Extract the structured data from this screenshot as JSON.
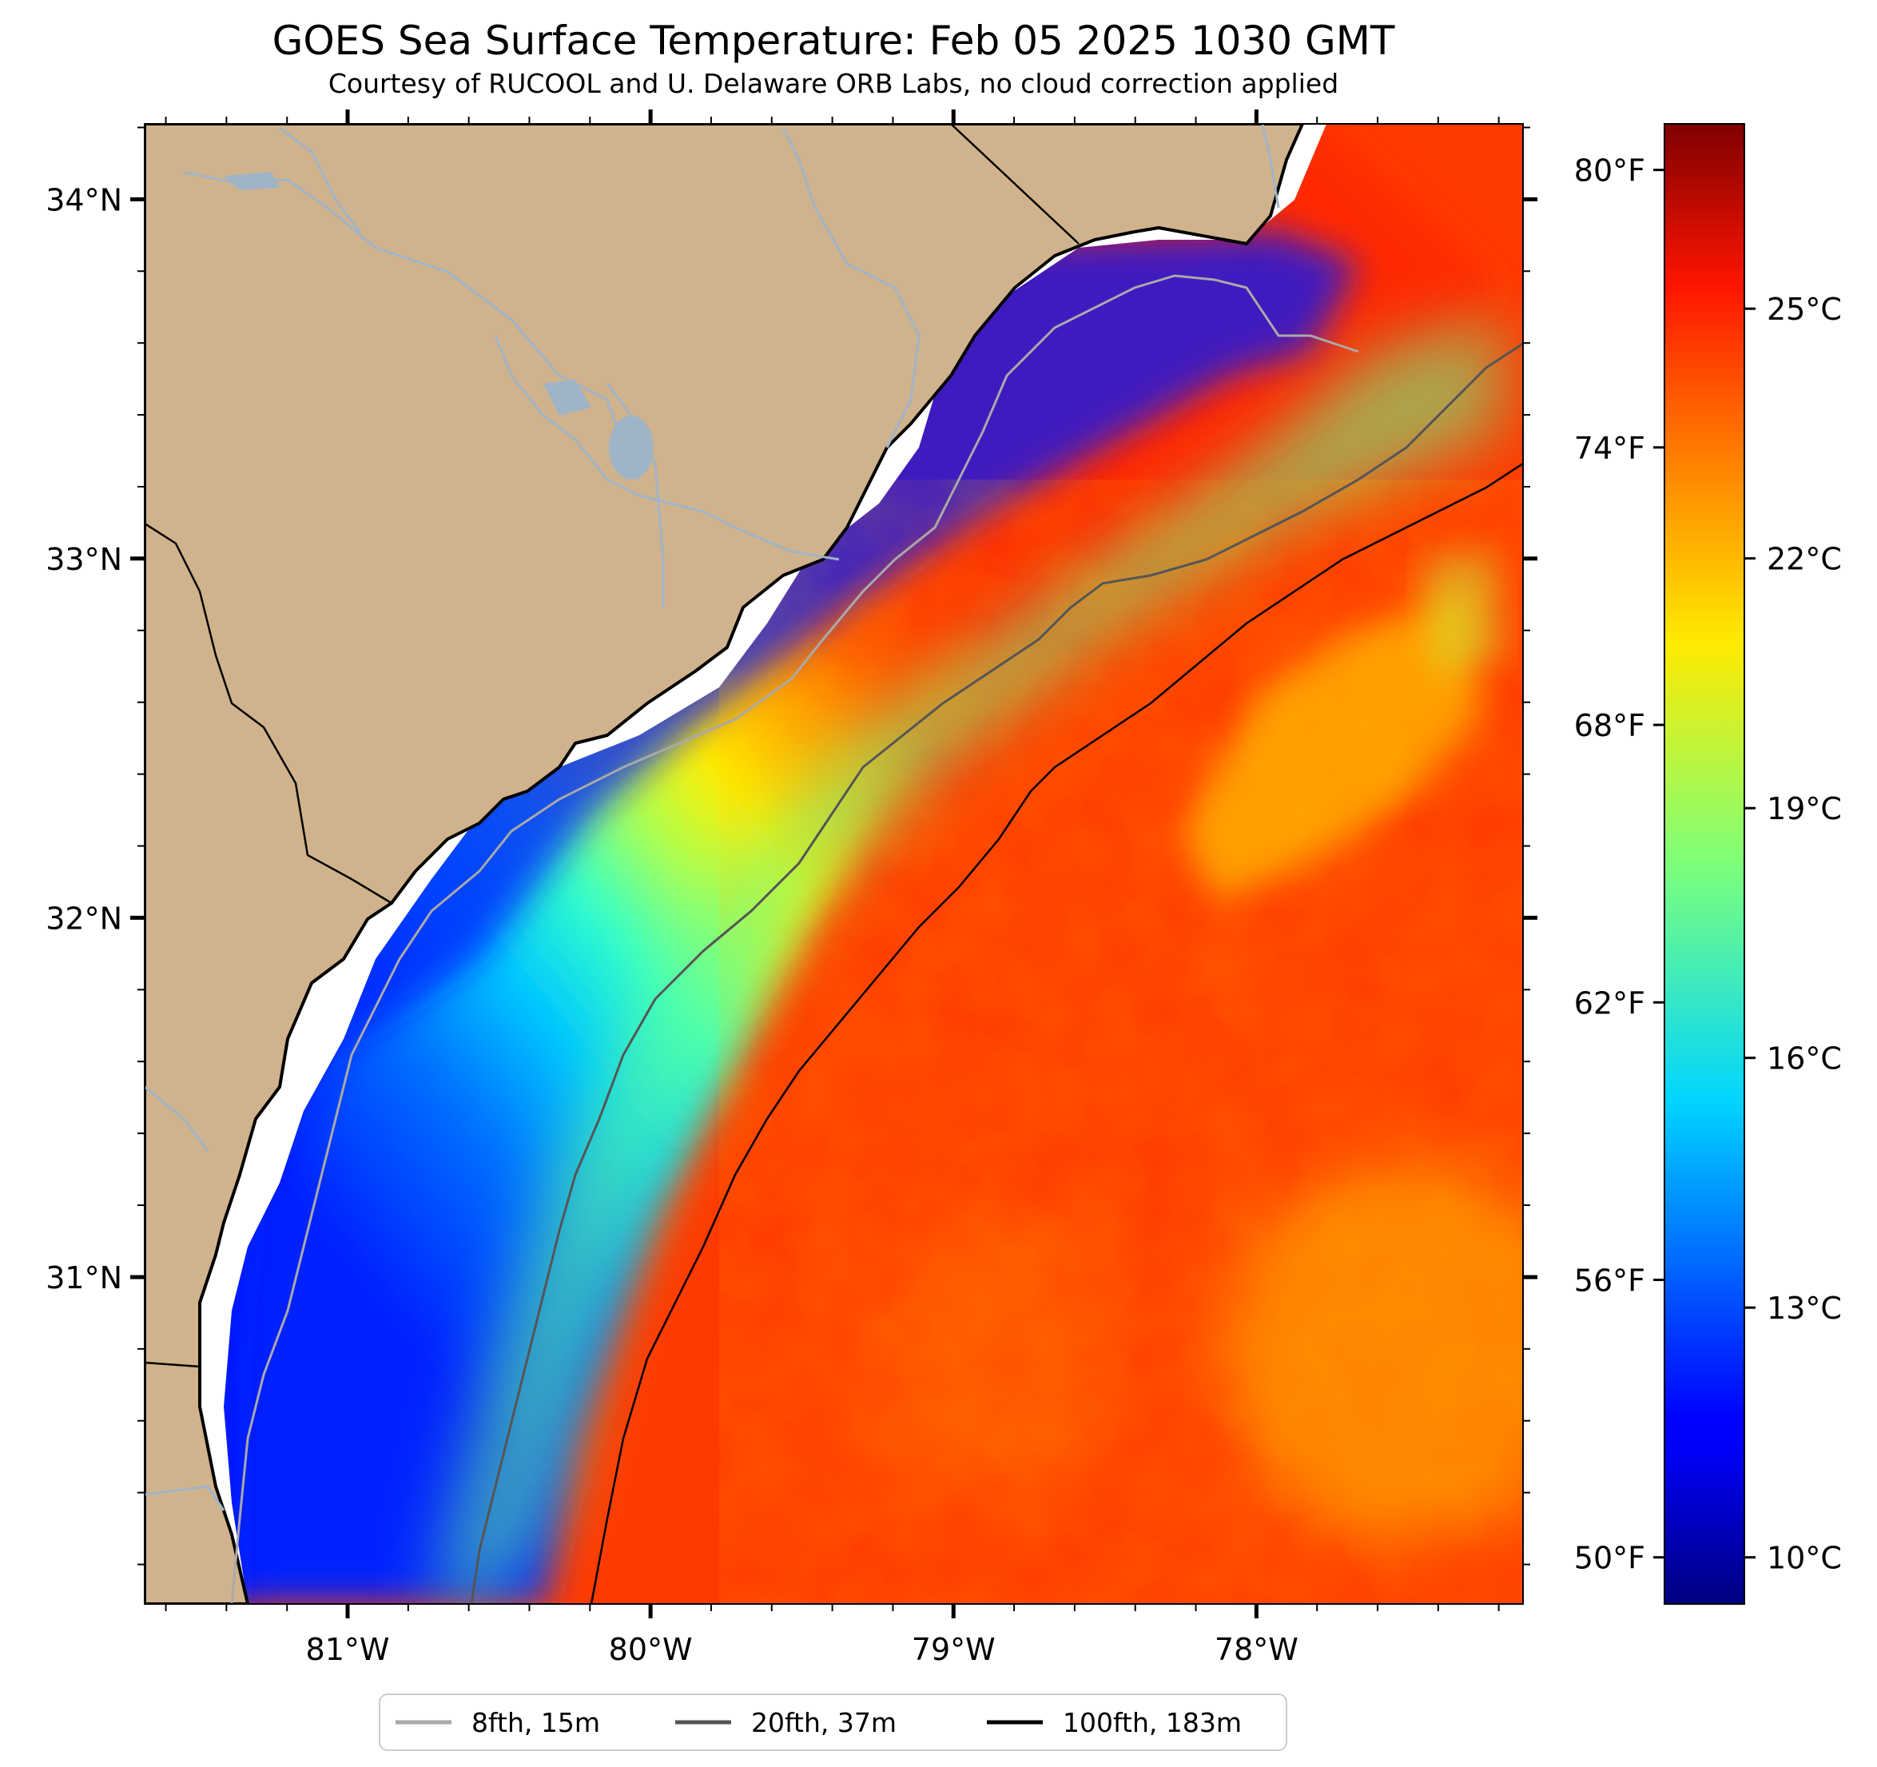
{
  "title": "GOES Sea Surface Temperature: Feb 05 2025 1030 GMT",
  "subtitle": "Courtesy of RUCOOL and U. Delaware ORB Labs, no cloud correction applied",
  "map": {
    "lon_range": [
      -81.67,
      -77.12
    ],
    "lat_range": [
      30.09,
      34.21
    ],
    "lat_ticks": [
      {
        "value": 34,
        "label": "34°N"
      },
      {
        "value": 33,
        "label": "33°N"
      },
      {
        "value": 32,
        "label": "32°N"
      },
      {
        "value": 31,
        "label": "31°N"
      }
    ],
    "lon_ticks": [
      {
        "value": -81,
        "label": "81°W"
      },
      {
        "value": -80,
        "label": "80°W"
      },
      {
        "value": -79,
        "label": "79°W"
      },
      {
        "value": -78,
        "label": "78°W"
      }
    ],
    "land_color": "#d0b38c"
  },
  "colorbar": {
    "celsius_range": [
      9.44,
      27.22
    ],
    "celsius_labels": [
      {
        "value": 10,
        "label": "10°C"
      },
      {
        "value": 13,
        "label": "13°C"
      },
      {
        "value": 16,
        "label": "16°C"
      },
      {
        "value": 19,
        "label": "19°C"
      },
      {
        "value": 22,
        "label": "22°C"
      },
      {
        "value": 25,
        "label": "25°C"
      }
    ],
    "fahrenheit_labels": [
      {
        "value": 50,
        "label": "50°F"
      },
      {
        "value": 56,
        "label": "56°F"
      },
      {
        "value": 62,
        "label": "62°F"
      },
      {
        "value": 68,
        "label": "68°F"
      },
      {
        "value": 74,
        "label": "74°F"
      },
      {
        "value": 80,
        "label": "80°F"
      }
    ],
    "colormap": "jet"
  },
  "legend": [
    {
      "label": "8fth, 15m",
      "color": "#a9a9a9"
    },
    {
      "label": "20fth, 37m",
      "color": "#555555"
    },
    {
      "label": "100fth, 183m",
      "color": "#000000"
    }
  ]
}
